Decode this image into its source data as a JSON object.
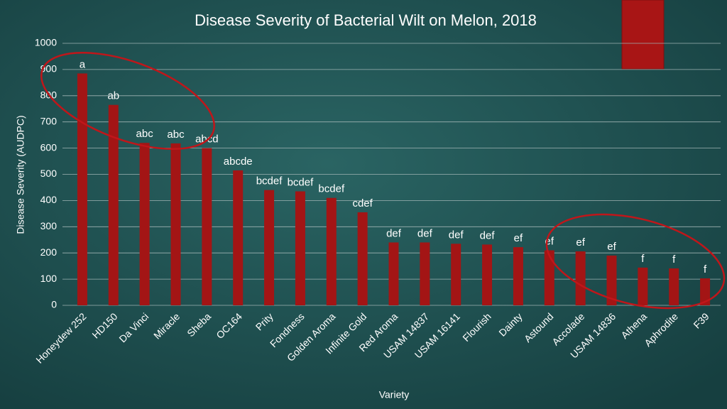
{
  "chart_data": {
    "type": "bar",
    "title": "Disease Severity of Bacterial Wilt on Melon, 2018",
    "x_label": "Variety",
    "y_label": "Disease Severity (AUDPC)",
    "categories": [
      "Honeydew 252",
      "HD150",
      "Da Vinci",
      "Miracle",
      "Sheba",
      "OC164",
      "Prity",
      "Fondness",
      "Golden Aroma",
      "Infinite Gold",
      "Red Aroma",
      "USAM 14837",
      "USAM 16141",
      "Flourish",
      "Dainty",
      "Astound",
      "Accolade",
      "USAM 14836",
      "Athena",
      "Aphrodite",
      "F39"
    ],
    "values": [
      885,
      765,
      620,
      618,
      600,
      515,
      440,
      435,
      410,
      355,
      240,
      240,
      235,
      232,
      222,
      210,
      206,
      190,
      144,
      141,
      103
    ],
    "significance_letters": [
      "a",
      "ab",
      "abc",
      "abc",
      "abcd",
      "abcde",
      "bcdef",
      "bcdef",
      "bcdef",
      "cdef",
      "def",
      "def",
      "def",
      "def",
      "ef",
      "ef",
      "ef",
      "ef",
      "f",
      "f",
      "f"
    ],
    "color": "#a31515",
    "ylim": [
      0,
      1000
    ],
    "yticks": [
      0,
      100,
      200,
      300,
      400,
      500,
      600,
      700,
      800,
      900,
      1000
    ],
    "grid": true
  }
}
